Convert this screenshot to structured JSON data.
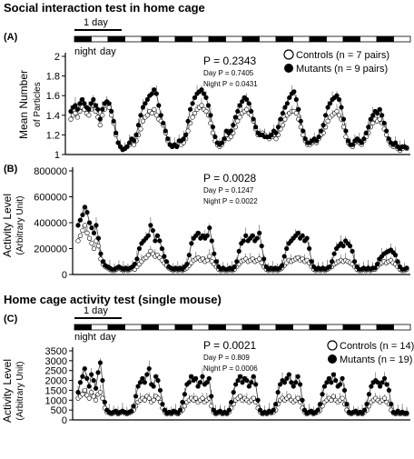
{
  "sections": {
    "social_title": "Social interaction test in home cage",
    "home_title": "Home cage activity test (single mouse)"
  },
  "light_dark_bar": {
    "day_span_label": "1 day",
    "night_label": "night",
    "day_label": "day",
    "segments": [
      "night",
      "day",
      "night",
      "day",
      "night",
      "day",
      "night",
      "day",
      "night",
      "day",
      "night",
      "day",
      "night",
      "day",
      "night",
      "day",
      "night",
      "day",
      "night",
      "day"
    ]
  },
  "colors": {
    "controls": "#ffffff",
    "mutants": "#000000",
    "line": "#666666",
    "error": "#555555"
  },
  "chart_data": [
    {
      "panel": "(A)",
      "type": "line",
      "ylabel": "Mean Number",
      "ylabel2": "of Particles",
      "ylim": [
        1,
        2
      ],
      "yticks": [
        "1",
        "1.2",
        "1.4",
        "1.6",
        "1.8",
        "2"
      ],
      "stats": {
        "main": "P = 0.2343",
        "day": "Day P = 0.7405",
        "night": "Night P = 0.0431"
      },
      "legend": [
        "Controls (n = 7 pairs)",
        "Mutants (n = 9 pairs)"
      ],
      "legend_position": "top-right",
      "series": [
        {
          "name": "Controls (n = 7 pairs)",
          "marker": "open",
          "values": [
            1.36,
            1.4,
            1.42,
            1.38,
            1.44,
            1.48,
            1.46,
            1.42,
            1.4,
            1.46,
            1.5,
            1.44,
            1.38,
            1.3,
            1.4,
            1.46,
            1.52,
            1.48,
            1.4,
            1.32,
            1.2,
            1.12,
            1.08,
            1.05,
            1.06,
            1.08,
            1.1,
            1.12,
            1.1,
            1.14,
            1.2,
            1.26,
            1.34,
            1.38,
            1.4,
            1.44,
            1.42,
            1.46,
            1.4,
            1.36,
            1.34,
            1.3,
            1.22,
            1.14,
            1.1,
            1.08,
            1.1,
            1.08,
            1.12,
            1.1,
            1.12,
            1.16,
            1.24,
            1.32,
            1.38,
            1.42,
            1.46,
            1.48,
            1.5,
            1.46,
            1.44,
            1.4,
            1.32,
            1.22,
            1.14,
            1.1,
            1.08,
            1.1,
            1.14,
            1.2,
            1.16,
            1.18,
            1.22,
            1.28,
            1.34,
            1.38,
            1.42,
            1.44,
            1.46,
            1.42,
            1.4,
            1.34,
            1.26,
            1.2,
            1.2,
            1.22,
            1.2,
            1.18,
            1.16,
            1.18,
            1.2,
            1.16,
            1.2,
            1.26,
            1.3,
            1.36,
            1.4,
            1.42,
            1.44,
            1.44,
            1.42,
            1.36,
            1.28,
            1.2,
            1.14,
            1.1,
            1.1,
            1.12,
            1.14,
            1.12,
            1.16,
            1.2,
            1.22,
            1.28,
            1.34,
            1.38,
            1.4,
            1.42,
            1.44,
            1.4,
            1.36,
            1.28,
            1.18,
            1.12,
            1.1,
            1.08,
            1.12,
            1.14,
            1.12,
            1.1,
            1.14,
            1.18,
            1.22,
            1.28,
            1.32,
            1.36,
            1.34,
            1.36,
            1.32,
            1.26,
            1.2,
            1.14,
            1.1,
            1.08,
            1.1,
            1.06,
            1.04,
            1.06,
            1.08,
            1.06
          ]
        },
        {
          "name": "Mutants (n = 9 pairs)",
          "marker": "filled",
          "values": [
            1.44,
            1.48,
            1.5,
            1.46,
            1.52,
            1.56,
            1.52,
            1.48,
            1.46,
            1.52,
            1.56,
            1.5,
            1.46,
            1.36,
            1.46,
            1.52,
            1.54,
            1.52,
            1.44,
            1.34,
            1.22,
            1.12,
            1.08,
            1.05,
            1.06,
            1.08,
            1.12,
            1.16,
            1.14,
            1.2,
            1.3,
            1.4,
            1.48,
            1.52,
            1.56,
            1.6,
            1.62,
            1.66,
            1.62,
            1.5,
            1.4,
            1.32,
            1.24,
            1.16,
            1.1,
            1.08,
            1.1,
            1.08,
            1.14,
            1.14,
            1.16,
            1.2,
            1.34,
            1.46,
            1.52,
            1.58,
            1.62,
            1.64,
            1.66,
            1.62,
            1.58,
            1.5,
            1.4,
            1.28,
            1.18,
            1.12,
            1.1,
            1.12,
            1.16,
            1.24,
            1.22,
            1.24,
            1.3,
            1.38,
            1.44,
            1.5,
            1.54,
            1.58,
            1.56,
            1.52,
            1.44,
            1.36,
            1.28,
            1.22,
            1.2,
            1.2,
            1.18,
            1.18,
            1.18,
            1.2,
            1.24,
            1.22,
            1.28,
            1.36,
            1.42,
            1.48,
            1.52,
            1.58,
            1.62,
            1.64,
            1.56,
            1.46,
            1.34,
            1.24,
            1.16,
            1.12,
            1.12,
            1.14,
            1.16,
            1.14,
            1.18,
            1.24,
            1.3,
            1.4,
            1.48,
            1.52,
            1.56,
            1.58,
            1.6,
            1.56,
            1.48,
            1.36,
            1.24,
            1.14,
            1.1,
            1.1,
            1.14,
            1.16,
            1.14,
            1.12,
            1.16,
            1.22,
            1.28,
            1.36,
            1.4,
            1.44,
            1.42,
            1.46,
            1.4,
            1.32,
            1.24,
            1.16,
            1.12,
            1.1,
            1.12,
            1.08,
            1.06,
            1.08,
            1.08,
            1.07
          ]
        }
      ]
    },
    {
      "panel": "(B)",
      "type": "line",
      "ylabel": "Activity Level",
      "ylabel2": "(Arbitrary Unit)",
      "ylim": [
        0,
        800000
      ],
      "yticks": [
        "0",
        "200000",
        "400000",
        "600000",
        "800000"
      ],
      "stats": {
        "main": "P = 0.0028",
        "day": "Day P = 0.1247",
        "night": "Night P = 0.0022"
      },
      "series": [
        {
          "name": "Controls",
          "marker": "open",
          "values": [
            260000,
            300000,
            340000,
            380000,
            320000,
            280000,
            240000,
            200000,
            260000,
            220000,
            120000,
            80000,
            60000,
            50000,
            40000,
            30000,
            30000,
            40000,
            50000,
            40000,
            30000,
            40000,
            30000,
            40000,
            50000,
            40000,
            60000,
            80000,
            100000,
            120000,
            130000,
            150000,
            180000,
            160000,
            140000,
            150000,
            130000,
            110000,
            90000,
            70000,
            50000,
            40000,
            30000,
            40000,
            30000,
            40000,
            30000,
            40000,
            50000,
            70000,
            90000,
            110000,
            120000,
            130000,
            110000,
            120000,
            100000,
            110000,
            140000,
            100000,
            80000,
            60000,
            40000,
            30000,
            40000,
            30000,
            30000,
            40000,
            30000,
            40000,
            60000,
            80000,
            100000,
            110000,
            120000,
            100000,
            110000,
            120000,
            100000,
            110000,
            120000,
            90000,
            60000,
            40000,
            30000,
            40000,
            30000,
            40000,
            30000,
            40000,
            50000,
            70000,
            90000,
            110000,
            100000,
            110000,
            120000,
            130000,
            110000,
            120000,
            100000,
            110000,
            90000,
            60000,
            40000,
            30000,
            40000,
            30000,
            40000,
            30000,
            40000,
            50000,
            60000,
            80000,
            90000,
            100000,
            110000,
            100000,
            110000,
            100000,
            90000,
            80000,
            60000,
            40000,
            30000,
            30000,
            40000,
            30000,
            40000,
            30000,
            40000,
            40000,
            60000,
            80000,
            90000,
            100000,
            90000,
            100000,
            110000,
            90000,
            80000,
            60000,
            40000,
            30000,
            30000,
            40000
          ]
        },
        {
          "name": "Mutants",
          "marker": "filled",
          "values": [
            380000,
            420000,
            460000,
            520000,
            480000,
            400000,
            360000,
            320000,
            380000,
            280000,
            160000,
            100000,
            70000,
            60000,
            50000,
            40000,
            40000,
            50000,
            60000,
            50000,
            40000,
            50000,
            40000,
            50000,
            60000,
            80000,
            120000,
            200000,
            240000,
            260000,
            280000,
            300000,
            380000,
            340000,
            260000,
            300000,
            260000,
            200000,
            140000,
            100000,
            60000,
            50000,
            40000,
            50000,
            40000,
            50000,
            40000,
            60000,
            80000,
            150000,
            240000,
            280000,
            300000,
            320000,
            280000,
            300000,
            280000,
            300000,
            360000,
            260000,
            160000,
            100000,
            60000,
            40000,
            50000,
            40000,
            40000,
            50000,
            40000,
            60000,
            100000,
            180000,
            240000,
            260000,
            300000,
            260000,
            280000,
            300000,
            260000,
            280000,
            320000,
            220000,
            120000,
            60000,
            40000,
            50000,
            40000,
            50000,
            40000,
            50000,
            70000,
            140000,
            200000,
            240000,
            260000,
            280000,
            300000,
            320000,
            280000,
            300000,
            260000,
            280000,
            200000,
            100000,
            60000,
            40000,
            50000,
            40000,
            50000,
            40000,
            50000,
            60000,
            100000,
            160000,
            200000,
            220000,
            240000,
            220000,
            260000,
            240000,
            220000,
            180000,
            100000,
            60000,
            40000,
            40000,
            50000,
            40000,
            50000,
            40000,
            50000,
            50000,
            80000,
            120000,
            140000,
            160000,
            170000,
            180000,
            190000,
            170000,
            150000,
            100000,
            60000,
            40000,
            40000,
            50000
          ]
        }
      ]
    },
    {
      "panel": "(C)",
      "type": "line",
      "ylabel": "Activity Level",
      "ylabel2": "(Arbitrary Unit)",
      "ylim": [
        0,
        3500
      ],
      "yticks": [
        "0",
        "500",
        "1000",
        "1500",
        "2000",
        "2500",
        "3000",
        "3500"
      ],
      "stats": {
        "main": "P = 0.0021",
        "day": "Day P = 0.809",
        "night": "Night P = 0.0006"
      },
      "legend": [
        "Controls (n = 14)",
        "Mutants (n = 19)"
      ],
      "legend_position": "top-right",
      "series": [
        {
          "name": "Controls (n = 14)",
          "marker": "open",
          "values": [
            1100,
            1200,
            1300,
            1500,
            1250,
            1100,
            1400,
            1200,
            1000,
            1300,
            1400,
            1100,
            600,
            400,
            350,
            300,
            350,
            400,
            300,
            350,
            400,
            350,
            300,
            350,
            400,
            500,
            700,
            900,
            1000,
            1100,
            1000,
            1200,
            1100,
            900,
            1000,
            1200,
            1100,
            900,
            600,
            400,
            300,
            350,
            300,
            400,
            350,
            300,
            400,
            500,
            700,
            900,
            1000,
            1100,
            1000,
            1100,
            900,
            1000,
            1100,
            900,
            1000,
            1100,
            700,
            400,
            300,
            350,
            400,
            300,
            350,
            300,
            400,
            600,
            800,
            1000,
            1100,
            1200,
            1000,
            1100,
            1000,
            900,
            1000,
            1100,
            900,
            600,
            400,
            300,
            350,
            300,
            400,
            350,
            400,
            500,
            800,
            1000,
            1100,
            1000,
            1100,
            1200,
            1000,
            900,
            1000,
            1100,
            900,
            600,
            400,
            300,
            350,
            400,
            300,
            350,
            400,
            500,
            700,
            900,
            1000,
            1100,
            1000,
            1200,
            1000,
            900,
            1000,
            1100,
            800,
            500,
            350,
            300,
            350,
            400,
            300,
            350,
            300,
            400,
            500,
            700,
            900,
            1000,
            1100,
            1000,
            900,
            1000,
            1100,
            900,
            800,
            500,
            350,
            300,
            400,
            300,
            350,
            300,
            300
          ]
        },
        {
          "name": "Mutants (n = 19)",
          "marker": "filled",
          "values": [
            1400,
            1900,
            2200,
            2600,
            2100,
            1700,
            2300,
            2000,
            1600,
            2400,
            2900,
            2000,
            900,
            500,
            400,
            350,
            400,
            450,
            350,
            400,
            450,
            400,
            350,
            400,
            450,
            700,
            1200,
            1700,
            1900,
            2100,
            1900,
            2300,
            2600,
            1800,
            1700,
            2200,
            2000,
            1500,
            800,
            500,
            350,
            400,
            350,
            450,
            400,
            350,
            500,
            900,
            1300,
            1800,
            1900,
            2200,
            2000,
            2100,
            1700,
            1900,
            2200,
            1800,
            1900,
            2100,
            1200,
            500,
            350,
            400,
            450,
            350,
            400,
            350,
            500,
            900,
            1400,
            1800,
            2000,
            2200,
            1900,
            2100,
            2000,
            1700,
            1900,
            2200,
            1800,
            1000,
            500,
            350,
            400,
            350,
            450,
            400,
            500,
            800,
            1400,
            1800,
            2000,
            1900,
            2100,
            2300,
            1900,
            1700,
            1900,
            2200,
            1800,
            1000,
            500,
            350,
            400,
            450,
            350,
            400,
            500,
            800,
            1300,
            1700,
            1900,
            2100,
            1900,
            2300,
            2000,
            1700,
            1800,
            2100,
            1500,
            800,
            400,
            350,
            400,
            450,
            350,
            400,
            350,
            500,
            800,
            1300,
            1700,
            1900,
            2000,
            1900,
            1700,
            1900,
            2100,
            1800,
            1500,
            800,
            400,
            350,
            450,
            350,
            400,
            350,
            350
          ]
        }
      ]
    }
  ]
}
